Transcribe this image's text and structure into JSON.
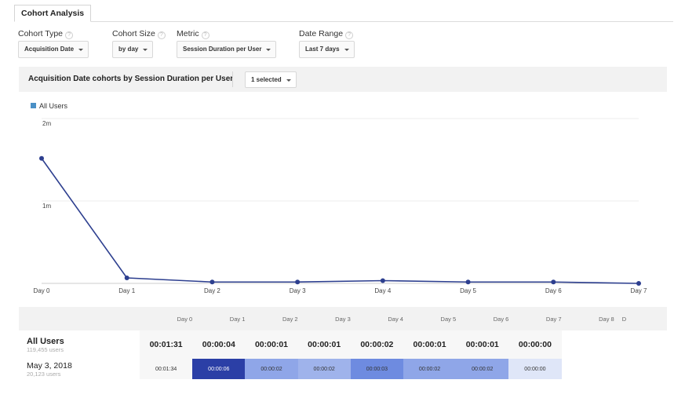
{
  "tab": {
    "label": "Cohort Analysis"
  },
  "controls": [
    {
      "label": "Cohort Type",
      "value": "Acquisition Date"
    },
    {
      "label": "Cohort Size",
      "value": "by day"
    },
    {
      "label": "Metric",
      "value": "Session Duration per User"
    },
    {
      "label": "Date Range",
      "value": "Last 7 days"
    }
  ],
  "help_glyph": "?",
  "panel": {
    "title": "Acquisition Date cohorts by Session Duration per User",
    "selector": "1 selected",
    "legend": "All Users",
    "legend_color": "#4a90c6"
  },
  "chart_data": {
    "type": "line",
    "x": [
      "Day 0",
      "Day 1",
      "Day 2",
      "Day 3",
      "Day 4",
      "Day 5",
      "Day 6",
      "Day 7"
    ],
    "series": [
      {
        "name": "All Users",
        "values_seconds": [
          91,
          4,
          1,
          1,
          2,
          1,
          1,
          0
        ]
      }
    ],
    "y_ticks": [
      {
        "label": "1m",
        "value": 60
      },
      {
        "label": "2m",
        "value": 120
      }
    ],
    "ylim": [
      0,
      120
    ],
    "line_color": "#2d3f8f",
    "grid": true
  },
  "table": {
    "columns": [
      "Day 0",
      "Day 1",
      "Day 2",
      "Day 3",
      "Day 4",
      "Day 5",
      "Day 6",
      "Day 7",
      "Day 8",
      "D"
    ],
    "rows": [
      {
        "label": "All Users",
        "sublabel": "119,455 users",
        "cells": [
          "00:01:31",
          "00:00:04",
          "00:00:01",
          "00:00:01",
          "00:00:02",
          "00:00:01",
          "00:00:01",
          "00:00:00",
          "",
          ""
        ]
      },
      {
        "label": "May 3, 2018",
        "sublabel": "20,123 users",
        "cells": [
          "00:01:34",
          "00:00:06",
          "00:00:02",
          "00:00:02",
          "00:00:03",
          "00:00:02",
          "00:00:02",
          "00:00:00",
          "",
          ""
        ],
        "colors": [
          "#f7f7f7",
          "#2b3fa6",
          "#8fa6e8",
          "#9fb3eb",
          "#6e8be0",
          "#8fa6e8",
          "#8fa6e8",
          "#dfe6f8",
          "#ffffff",
          "#ffffff"
        ]
      }
    ]
  }
}
